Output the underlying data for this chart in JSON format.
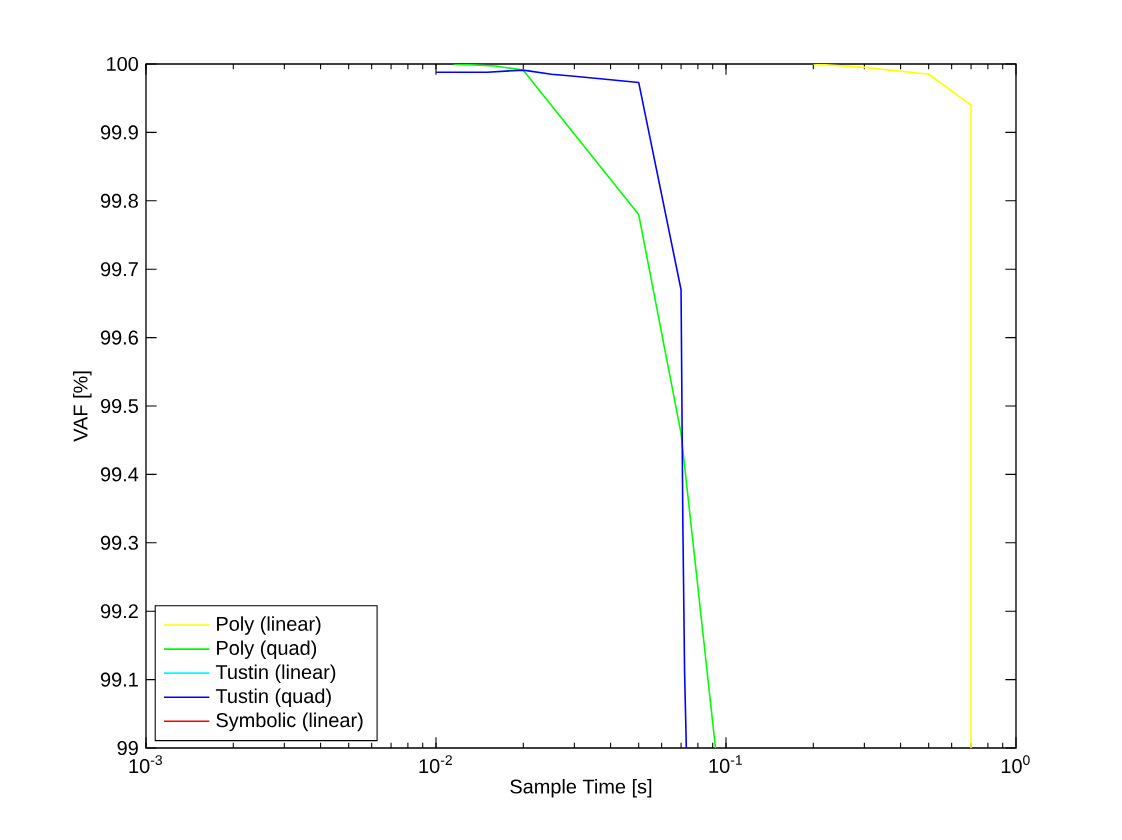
{
  "chart_data": {
    "type": "line",
    "xlabel": "Sample Time [s]",
    "ylabel": "VAF [%]",
    "log": "x",
    "xlim": [
      0.001,
      1
    ],
    "ylim": [
      99,
      100
    ],
    "xticks": [
      {
        "value": 0.001,
        "label": "10$^{-3}$"
      },
      {
        "value": 0.01,
        "label": "10$^{-2}$"
      },
      {
        "value": 0.1,
        "label": "10$^{-1}$"
      },
      {
        "value": 1,
        "label": "10$^{0}$"
      }
    ],
    "yticks": [
      99,
      99.1,
      99.2,
      99.3,
      99.4,
      99.5,
      99.6,
      99.7,
      99.8,
      99.9,
      100
    ],
    "grid": false,
    "legend": "bottom left",
    "marker": "none",
    "line_style": "solid",
    "series": [
      {
        "name": "Poly (linear)",
        "color": "#ffff00",
        "x": [
          0.2,
          0.3,
          0.5,
          0.7,
          0.7
        ],
        "values": [
          100,
          99.995,
          99.985,
          99.94,
          99
        ]
      },
      {
        "name": "Poly (quad)",
        "color": "#00ff00",
        "x": [
          0.0115,
          0.016,
          0.02,
          0.05,
          0.07,
          0.092
        ],
        "values": [
          100,
          99.997,
          99.991,
          99.78,
          99.46,
          99
        ]
      },
      {
        "name": "Tustin (linear)",
        "color": "#00ffff",
        "values": [
          null
        ]
      },
      {
        "name": "Tustin (quad)",
        "color": "#0000ff",
        "x": [
          0.01,
          0.015,
          0.02,
          0.025,
          0.03,
          0.04,
          0.05,
          0.07,
          0.071,
          0.072,
          0.073
        ],
        "values": [
          99.988,
          99.988,
          99.991,
          99.985,
          99.982,
          99.977,
          99.973,
          99.67,
          99.33,
          99.11,
          99
        ]
      },
      {
        "name": "Symbolic (linear)",
        "color": "#ff0000",
        "values": [
          null
        ]
      }
    ]
  }
}
